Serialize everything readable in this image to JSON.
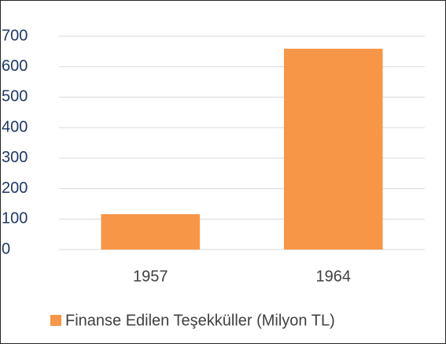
{
  "chart_data": {
    "type": "bar",
    "categories": [
      "1957",
      "1964"
    ],
    "series": [
      {
        "name": "Finanse Edilen Teşekküller (Milyon TL)",
        "color": "#f79646",
        "values": [
          116,
          659
        ]
      }
    ],
    "ylim": [
      0,
      700
    ],
    "yticks": [
      0,
      100,
      200,
      300,
      400,
      500,
      600,
      700
    ],
    "grid": true,
    "legend": "bottom"
  }
}
